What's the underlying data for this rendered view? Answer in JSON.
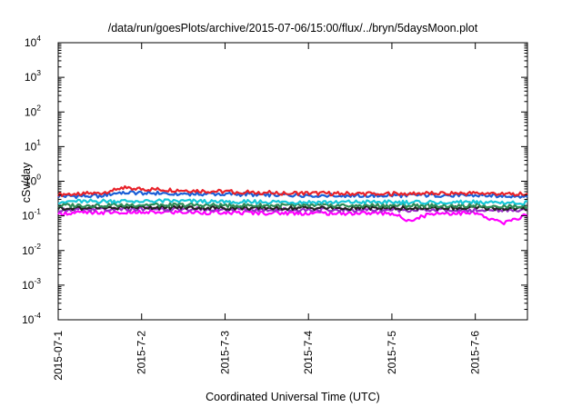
{
  "chart_data": {
    "type": "line",
    "title": "/data/run/goesPlots/archive/2015-07-06/15:00/flux/../bryn/5daysMoon.plot",
    "xlabel": "Coordinated Universal Time (UTC)",
    "ylabel": "cSv/day",
    "yscale": "log",
    "ylim": [
      0.0001,
      10000
    ],
    "y_ticks": [
      {
        "base": "10",
        "exp": "-4",
        "value": 0.0001
      },
      {
        "base": "10",
        "exp": "-3",
        "value": 0.001
      },
      {
        "base": "10",
        "exp": "-2",
        "value": 0.01
      },
      {
        "base": "10",
        "exp": "-1",
        "value": 0.1
      },
      {
        "base": "10",
        "exp": "0",
        "value": 1
      },
      {
        "base": "10",
        "exp": "1",
        "value": 10
      },
      {
        "base": "10",
        "exp": "2",
        "value": 100
      },
      {
        "base": "10",
        "exp": "3",
        "value": 1000
      },
      {
        "base": "10",
        "exp": "4",
        "value": 10000
      }
    ],
    "xlim": [
      "2015-07-01T00:00",
      "2015-07-06T15:00"
    ],
    "x_ticks": [
      {
        "label": "2015-07-1",
        "value": "2015-07-01"
      },
      {
        "label": "2015-7-2",
        "value": "2015-07-02"
      },
      {
        "label": "2015-7-3",
        "value": "2015-07-03"
      },
      {
        "label": "2015-7-4",
        "value": "2015-07-04"
      },
      {
        "label": "2015-7-5",
        "value": "2015-07-05"
      },
      {
        "label": "2015-7-6",
        "value": "2015-07-06"
      }
    ],
    "grid": false,
    "legend": false,
    "series": [
      {
        "color": "#e8222a",
        "x": [
          "2015-07-01T00:00",
          "2015-07-01T12:00",
          "2015-07-01T18:00",
          "2015-07-02T00:00",
          "2015-07-02T12:00",
          "2015-07-03T00:00",
          "2015-07-03T12:00",
          "2015-07-04T00:00",
          "2015-07-04T12:00",
          "2015-07-05T00:00",
          "2015-07-05T12:00",
          "2015-07-06T00:00",
          "2015-07-06T15:00"
        ],
        "y": [
          0.42,
          0.45,
          0.65,
          0.6,
          0.55,
          0.5,
          0.47,
          0.45,
          0.44,
          0.44,
          0.45,
          0.45,
          0.43
        ]
      },
      {
        "color": "#1a5fd6",
        "x": [
          "2015-07-01T00:00",
          "2015-07-01T12:00",
          "2015-07-01T18:00",
          "2015-07-02T00:00",
          "2015-07-02T12:00",
          "2015-07-03T00:00",
          "2015-07-03T12:00",
          "2015-07-04T00:00",
          "2015-07-04T12:00",
          "2015-07-05T00:00",
          "2015-07-05T12:00",
          "2015-07-06T00:00",
          "2015-07-06T15:00"
        ],
        "y": [
          0.37,
          0.38,
          0.48,
          0.46,
          0.44,
          0.43,
          0.41,
          0.4,
          0.39,
          0.39,
          0.4,
          0.39,
          0.38
        ]
      },
      {
        "color": "#18c7d8",
        "x": [
          "2015-07-01T00:00",
          "2015-07-02T00:00",
          "2015-07-03T00:00",
          "2015-07-04T00:00",
          "2015-07-05T00:00",
          "2015-07-06T00:00",
          "2015-07-06T15:00"
        ],
        "y": [
          0.26,
          0.27,
          0.26,
          0.25,
          0.25,
          0.25,
          0.24
        ]
      },
      {
        "color": "#2e8b57",
        "x": [
          "2015-07-01T00:00",
          "2015-07-02T00:00",
          "2015-07-03T00:00",
          "2015-07-04T00:00",
          "2015-07-05T00:00",
          "2015-07-06T00:00",
          "2015-07-06T15:00"
        ],
        "y": [
          0.2,
          0.21,
          0.2,
          0.2,
          0.2,
          0.2,
          0.19
        ]
      },
      {
        "color": "#222222",
        "x": [
          "2015-07-01T00:00",
          "2015-07-02T00:00",
          "2015-07-03T00:00",
          "2015-07-04T00:00",
          "2015-07-05T00:00",
          "2015-07-06T00:00",
          "2015-07-06T15:00"
        ],
        "y": [
          0.17,
          0.18,
          0.17,
          0.17,
          0.17,
          0.17,
          0.16
        ]
      },
      {
        "color": "#9b30c8",
        "x": [
          "2015-07-01T00:00",
          "2015-07-02T00:00",
          "2015-07-03T00:00",
          "2015-07-04T00:00",
          "2015-07-05T00:00",
          "2015-07-06T00:00",
          "2015-07-06T15:00"
        ],
        "y": [
          0.15,
          0.16,
          0.155,
          0.15,
          0.15,
          0.15,
          0.145
        ]
      },
      {
        "color": "#ff00ff",
        "x": [
          "2015-07-01T00:00",
          "2015-07-02T00:00",
          "2015-07-03T00:00",
          "2015-07-04T00:00",
          "2015-07-05T00:00",
          "2015-07-05T04:30",
          "2015-07-05T12:00",
          "2015-07-06T00:00",
          "2015-07-06T08:00",
          "2015-07-06T15:00"
        ],
        "y": [
          0.12,
          0.13,
          0.125,
          0.12,
          0.12,
          0.075,
          0.12,
          0.12,
          0.06,
          0.11
        ]
      }
    ]
  }
}
